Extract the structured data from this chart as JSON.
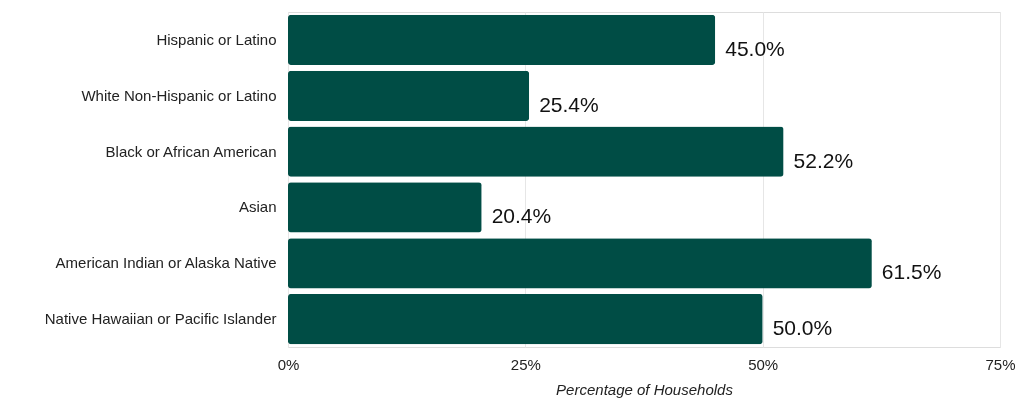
{
  "chart_data": {
    "type": "bar",
    "orientation": "horizontal",
    "categories": [
      "Hispanic or Latino",
      "White Non-Hispanic or Latino",
      "Black or African American",
      "Asian",
      "American Indian or Alaska Native",
      "Native Hawaiian or Pacific Islander"
    ],
    "values": [
      45.0,
      25.4,
      52.2,
      20.4,
      61.5,
      50.0
    ],
    "value_labels": [
      "45.0%",
      "25.4%",
      "52.2%",
      "20.4%",
      "61.5%",
      "50.0%"
    ],
    "color": "#004d45",
    "xlabel": "Percentage of Households",
    "xlim": [
      0,
      75
    ],
    "xticks": [
      {
        "value": 0,
        "label": "0%"
      },
      {
        "value": 25,
        "label": "25%"
      },
      {
        "value": 50,
        "label": "50%"
      },
      {
        "value": 75,
        "label": "75%"
      }
    ],
    "grid": "x"
  }
}
